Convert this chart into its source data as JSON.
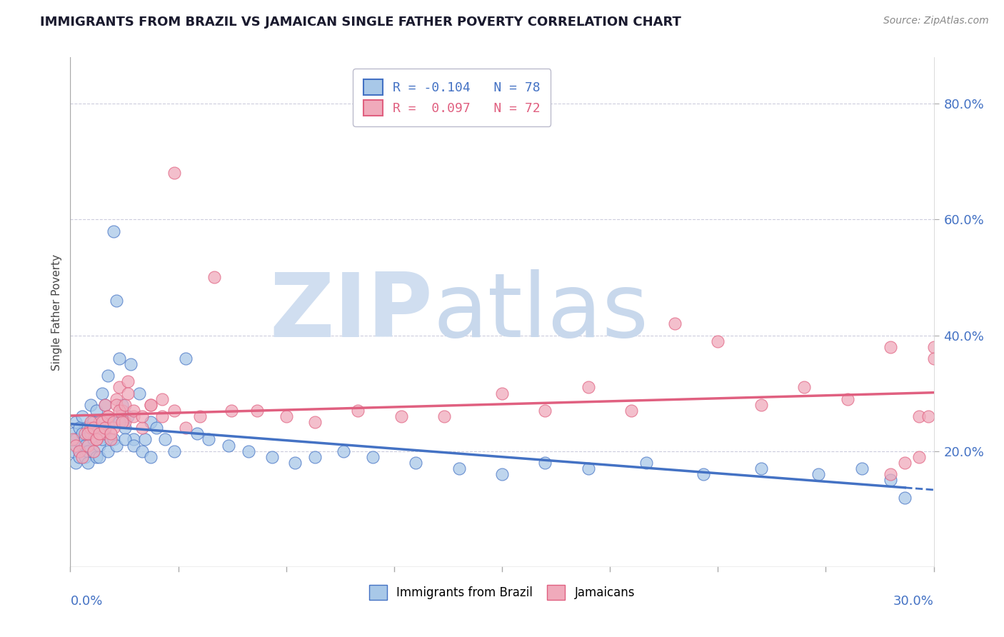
{
  "title": "IMMIGRANTS FROM BRAZIL VS JAMAICAN SINGLE FATHER POVERTY CORRELATION CHART",
  "source": "Source: ZipAtlas.com",
  "ylabel": "Single Father Poverty",
  "yticklabels": [
    "20.0%",
    "40.0%",
    "60.0%",
    "80.0%"
  ],
  "ytick_values": [
    0.2,
    0.4,
    0.6,
    0.8
  ],
  "xlim": [
    0.0,
    0.3
  ],
  "ylim": [
    0.0,
    0.88
  ],
  "legend_r1_label": "R = -0.104",
  "legend_n1_label": "N = 78",
  "legend_r2_label": "R =  0.097",
  "legend_n2_label": "N = 72",
  "color_blue": "#A8C8E8",
  "color_pink": "#F0AABB",
  "trendline_blue": "#4472C4",
  "trendline_pink": "#E06080",
  "watermark_zip": "ZIP",
  "watermark_atlas": "atlas",
  "watermark_color": "#D0DEF0",
  "blue_x": [
    0.001,
    0.001,
    0.002,
    0.002,
    0.002,
    0.003,
    0.003,
    0.003,
    0.004,
    0.004,
    0.004,
    0.005,
    0.005,
    0.005,
    0.006,
    0.006,
    0.006,
    0.007,
    0.007,
    0.008,
    0.008,
    0.008,
    0.009,
    0.009,
    0.01,
    0.01,
    0.01,
    0.011,
    0.011,
    0.012,
    0.012,
    0.013,
    0.013,
    0.014,
    0.014,
    0.015,
    0.015,
    0.016,
    0.016,
    0.017,
    0.018,
    0.019,
    0.02,
    0.021,
    0.022,
    0.024,
    0.026,
    0.028,
    0.03,
    0.033,
    0.036,
    0.04,
    0.044,
    0.048,
    0.055,
    0.062,
    0.07,
    0.078,
    0.085,
    0.095,
    0.105,
    0.12,
    0.135,
    0.15,
    0.165,
    0.18,
    0.2,
    0.22,
    0.24,
    0.26,
    0.275,
    0.285,
    0.29,
    0.017,
    0.019,
    0.022,
    0.025,
    0.028
  ],
  "blue_y": [
    0.2,
    0.23,
    0.18,
    0.22,
    0.25,
    0.2,
    0.24,
    0.19,
    0.21,
    0.23,
    0.26,
    0.19,
    0.22,
    0.21,
    0.2,
    0.24,
    0.18,
    0.28,
    0.23,
    0.2,
    0.25,
    0.22,
    0.19,
    0.27,
    0.21,
    0.24,
    0.19,
    0.3,
    0.22,
    0.28,
    0.23,
    0.33,
    0.2,
    0.25,
    0.22,
    0.58,
    0.22,
    0.46,
    0.21,
    0.36,
    0.28,
    0.24,
    0.26,
    0.35,
    0.22,
    0.3,
    0.22,
    0.25,
    0.24,
    0.22,
    0.2,
    0.36,
    0.23,
    0.22,
    0.21,
    0.2,
    0.19,
    0.18,
    0.19,
    0.2,
    0.19,
    0.18,
    0.17,
    0.16,
    0.18,
    0.17,
    0.18,
    0.16,
    0.17,
    0.16,
    0.17,
    0.15,
    0.12,
    0.25,
    0.22,
    0.21,
    0.2,
    0.19
  ],
  "pink_x": [
    0.001,
    0.002,
    0.003,
    0.004,
    0.005,
    0.006,
    0.007,
    0.008,
    0.009,
    0.01,
    0.011,
    0.012,
    0.013,
    0.014,
    0.015,
    0.016,
    0.017,
    0.018,
    0.019,
    0.02,
    0.022,
    0.025,
    0.028,
    0.032,
    0.036,
    0.04,
    0.045,
    0.05,
    0.056,
    0.065,
    0.075,
    0.085,
    0.1,
    0.115,
    0.13,
    0.15,
    0.165,
    0.18,
    0.195,
    0.21,
    0.225,
    0.24,
    0.255,
    0.27,
    0.285,
    0.295,
    0.3,
    0.3,
    0.298,
    0.295,
    0.29,
    0.285,
    0.006,
    0.007,
    0.008,
    0.009,
    0.01,
    0.011,
    0.012,
    0.013,
    0.014,
    0.015,
    0.016,
    0.017,
    0.018,
    0.019,
    0.02,
    0.022,
    0.025,
    0.028,
    0.032,
    0.036
  ],
  "pink_y": [
    0.22,
    0.21,
    0.2,
    0.19,
    0.23,
    0.21,
    0.24,
    0.2,
    0.22,
    0.25,
    0.23,
    0.28,
    0.26,
    0.22,
    0.24,
    0.29,
    0.31,
    0.27,
    0.25,
    0.32,
    0.26,
    0.24,
    0.28,
    0.26,
    0.68,
    0.24,
    0.26,
    0.5,
    0.27,
    0.27,
    0.26,
    0.25,
    0.27,
    0.26,
    0.26,
    0.3,
    0.27,
    0.31,
    0.27,
    0.42,
    0.39,
    0.28,
    0.31,
    0.29,
    0.38,
    0.26,
    0.38,
    0.36,
    0.26,
    0.19,
    0.18,
    0.16,
    0.23,
    0.25,
    0.24,
    0.22,
    0.23,
    0.25,
    0.24,
    0.26,
    0.23,
    0.25,
    0.28,
    0.27,
    0.25,
    0.28,
    0.3,
    0.27,
    0.26,
    0.28,
    0.29,
    0.27
  ]
}
